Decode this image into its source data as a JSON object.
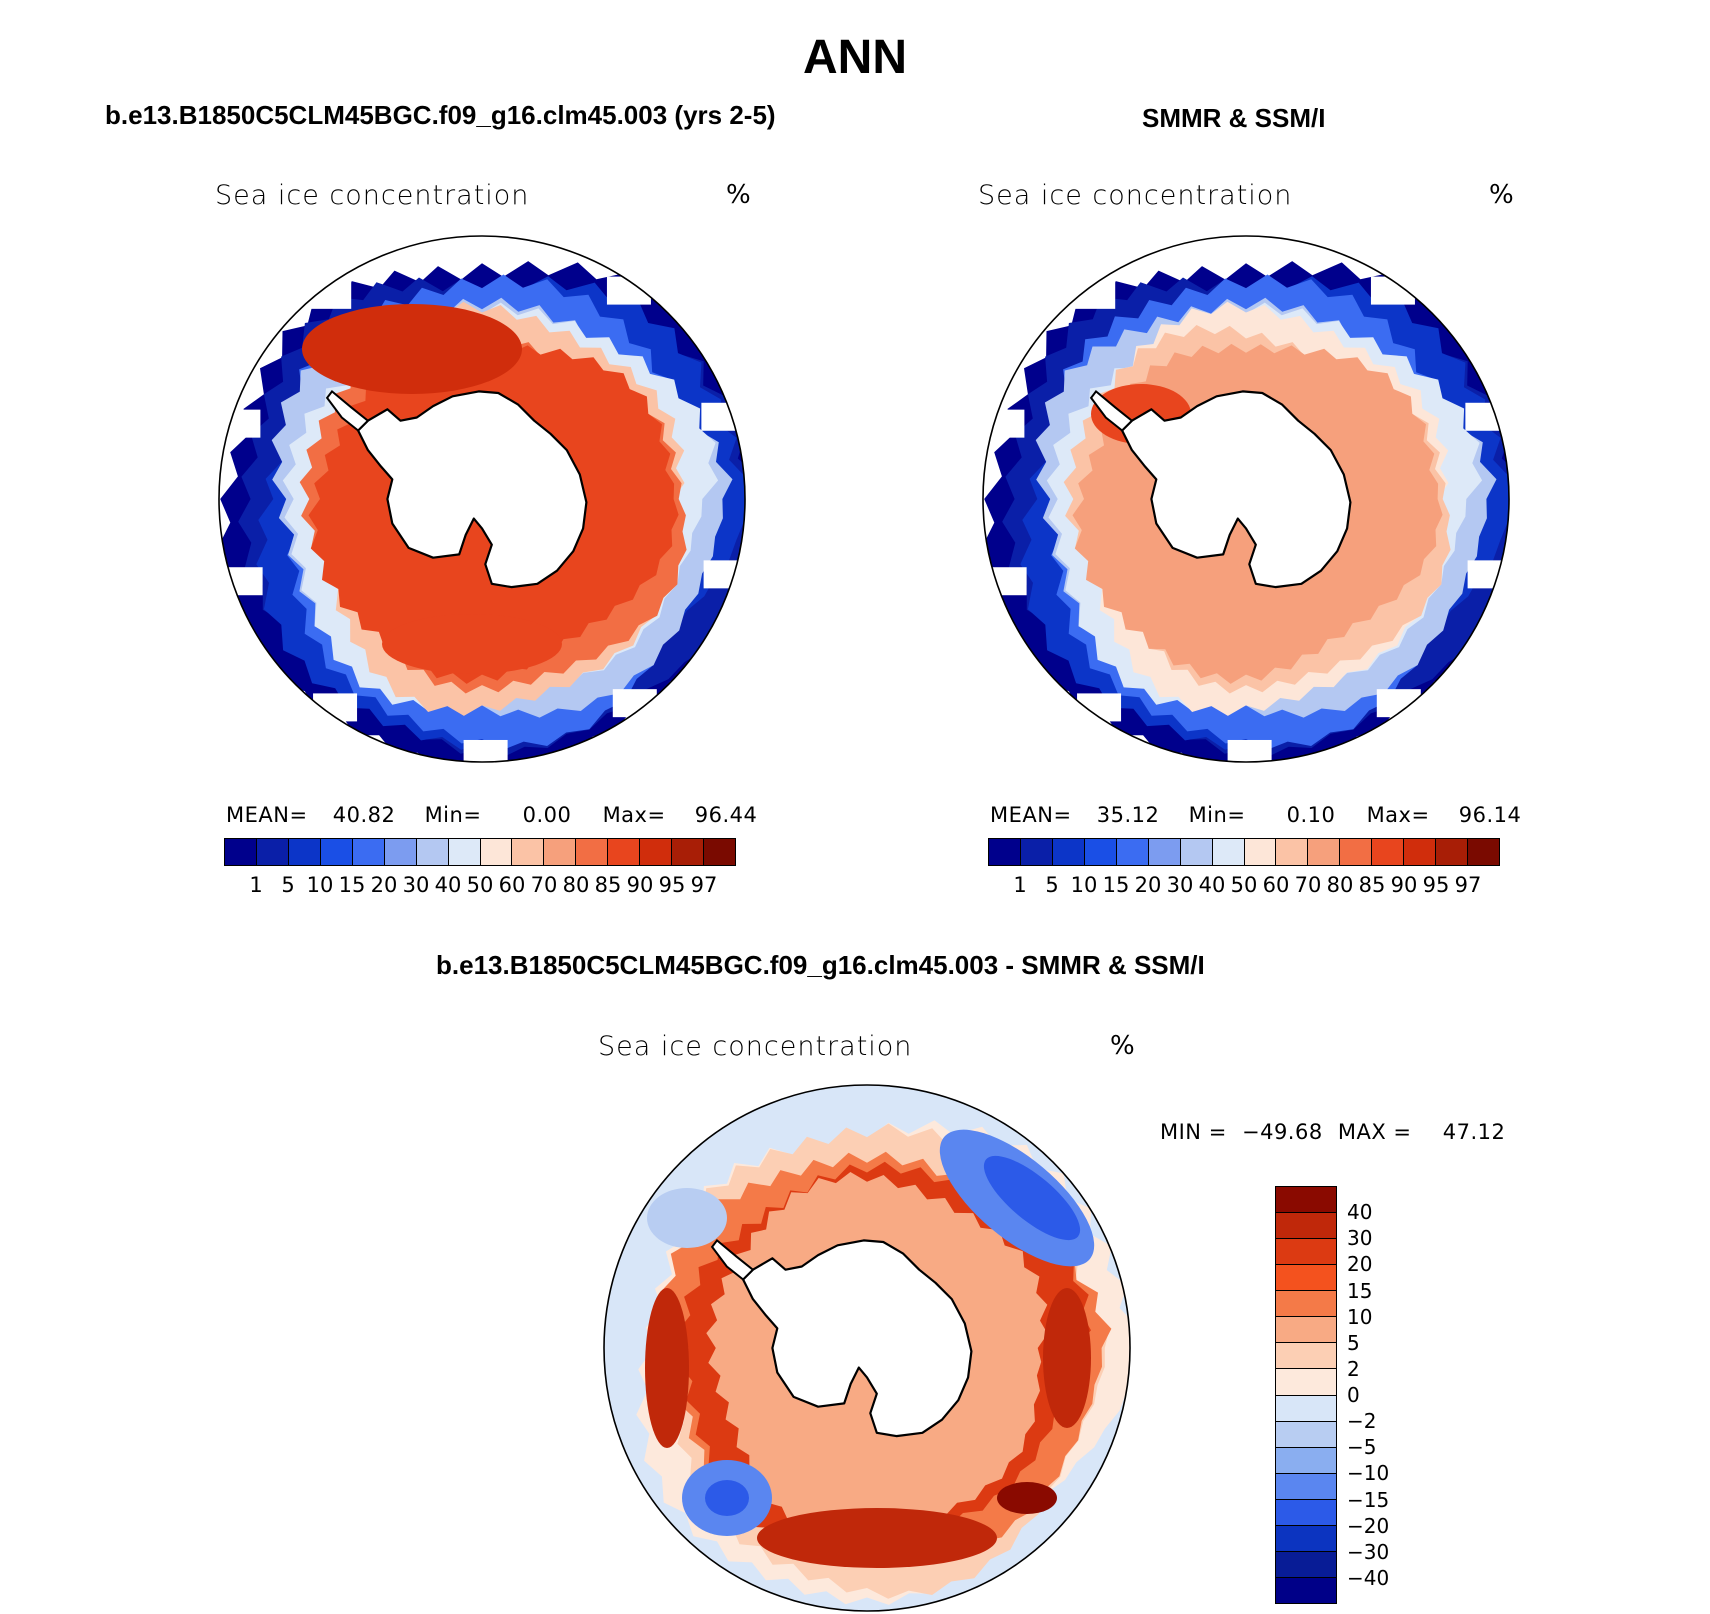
{
  "title": "ANN",
  "colors": {
    "continent": "#ffffff",
    "coast": "#000000",
    "ocean_open": "#ffffff"
  },
  "chart_data": [
    {
      "type": "heatmap",
      "panel": "model",
      "title": "b.e13.B1850C5CLM45BGC.f09_g16.clm45.003 (yrs 2-5)",
      "variable": "Sea ice concentration",
      "units": "%",
      "stats": {
        "mean_label": "MEAN=",
        "mean": "40.82",
        "min_label": "Min=",
        "min": "0.00",
        "max_label": "Max=",
        "max": "96.44"
      },
      "levels": [
        "1",
        "5",
        "10",
        "15",
        "20",
        "30",
        "40",
        "50",
        "60",
        "70",
        "80",
        "85",
        "90",
        "95",
        "97"
      ],
      "colors": [
        "#00008c",
        "#0a1fa8",
        "#0c35c8",
        "#1a4fe6",
        "#3b6cf2",
        "#7c9cf0",
        "#b4c8f2",
        "#dde9f8",
        "#fde6d8",
        "#fbc3a6",
        "#f6a07c",
        "#f26e44",
        "#e8451e",
        "#d02d0c",
        "#a81e06",
        "#7a0a00"
      ],
      "ring_bands": [
        1,
        5,
        10,
        20,
        40,
        60,
        80,
        90
      ]
    },
    {
      "type": "heatmap",
      "panel": "obs",
      "title": "SMMR & SSM/I",
      "variable": "Sea ice concentration",
      "units": "%",
      "stats": {
        "mean_label": "MEAN=",
        "mean": "35.12",
        "min_label": "Min=",
        "min": "0.10",
        "max_label": "Max=",
        "max": "96.14"
      },
      "levels": [
        "1",
        "5",
        "10",
        "15",
        "20",
        "30",
        "40",
        "50",
        "60",
        "70",
        "80",
        "85",
        "90",
        "95",
        "97"
      ],
      "colors": [
        "#00008c",
        "#0a1fa8",
        "#0c35c8",
        "#1a4fe6",
        "#3b6cf2",
        "#7c9cf0",
        "#b4c8f2",
        "#dde9f8",
        "#fde6d8",
        "#fbc3a6",
        "#f6a07c",
        "#f26e44",
        "#e8451e",
        "#d02d0c",
        "#a81e06",
        "#7a0a00"
      ],
      "ring_bands": [
        1,
        5,
        10,
        20,
        40,
        60,
        70,
        80
      ]
    },
    {
      "type": "heatmap",
      "panel": "difference",
      "title": "b.e13.B1850C5CLM45BGC.f09_g16.clm45.003 - SMMR & SSM/I",
      "variable": "Sea ice concentration",
      "units": "%",
      "stats": {
        "min_label": "MIN =",
        "min": "−49.68",
        "max_label": "MAX =",
        "max": "47.12"
      },
      "levels": [
        "40",
        "30",
        "20",
        "15",
        "10",
        "5",
        "2",
        "0",
        "−2",
        "−5",
        "−10",
        "−15",
        "−20",
        "−30",
        "−40"
      ],
      "colors": [
        "#8a0a00",
        "#c0280a",
        "#dc3a12",
        "#f4521e",
        "#f47a48",
        "#f8aa84",
        "#fccfb4",
        "#fde9dc",
        "#d8e6f8",
        "#b8cdf2",
        "#8aaef0",
        "#5a86f0",
        "#2c5ae8",
        "#0c34c0",
        "#081c96",
        "#000088"
      ]
    }
  ]
}
